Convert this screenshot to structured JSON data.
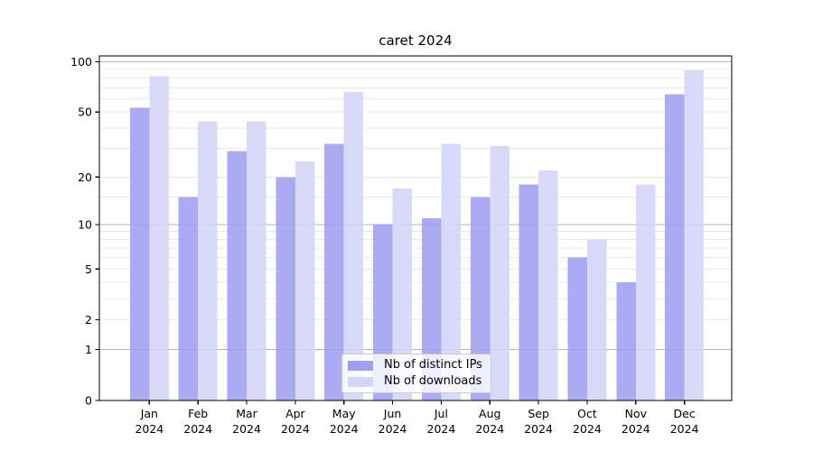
{
  "chart_data": {
    "type": "bar",
    "title": "caret 2024",
    "categories": [
      "Jan",
      "Feb",
      "Mar",
      "Apr",
      "May",
      "Jun",
      "Jul",
      "Aug",
      "Sep",
      "Oct",
      "Nov",
      "Dec"
    ],
    "category_year": "2024",
    "series": [
      {
        "key": "ips",
        "name": "Nb of distinct IPs",
        "color": "#9f9ff2",
        "values": [
          53,
          15,
          29,
          20,
          32,
          10,
          11,
          15,
          18,
          6,
          4,
          64
        ]
      },
      {
        "key": "downloads",
        "name": "Nb of downloads",
        "color": "#d4d4f9",
        "values": [
          82,
          44,
          44,
          25,
          66,
          17,
          32,
          31,
          22,
          8,
          18,
          89
        ]
      }
    ],
    "y_axis": {
      "scale": "log10(value+1)",
      "tick_labels": [
        0,
        1,
        2,
        5,
        10,
        20,
        50,
        100
      ],
      "major_gridlines": [
        1,
        10,
        100
      ],
      "minor_gridlines": [
        2,
        3,
        4,
        5,
        6,
        7,
        8,
        9,
        15,
        20,
        30,
        40,
        50,
        60,
        70,
        80,
        90
      ],
      "range": [
        0,
        109
      ]
    },
    "grid": {
      "major_color": "#b4b4b4",
      "minor_color": "#e8e8e8"
    },
    "axis_color": "#000000",
    "text_color": "#000000",
    "legend": {
      "position": "inside-bottom-center"
    }
  }
}
